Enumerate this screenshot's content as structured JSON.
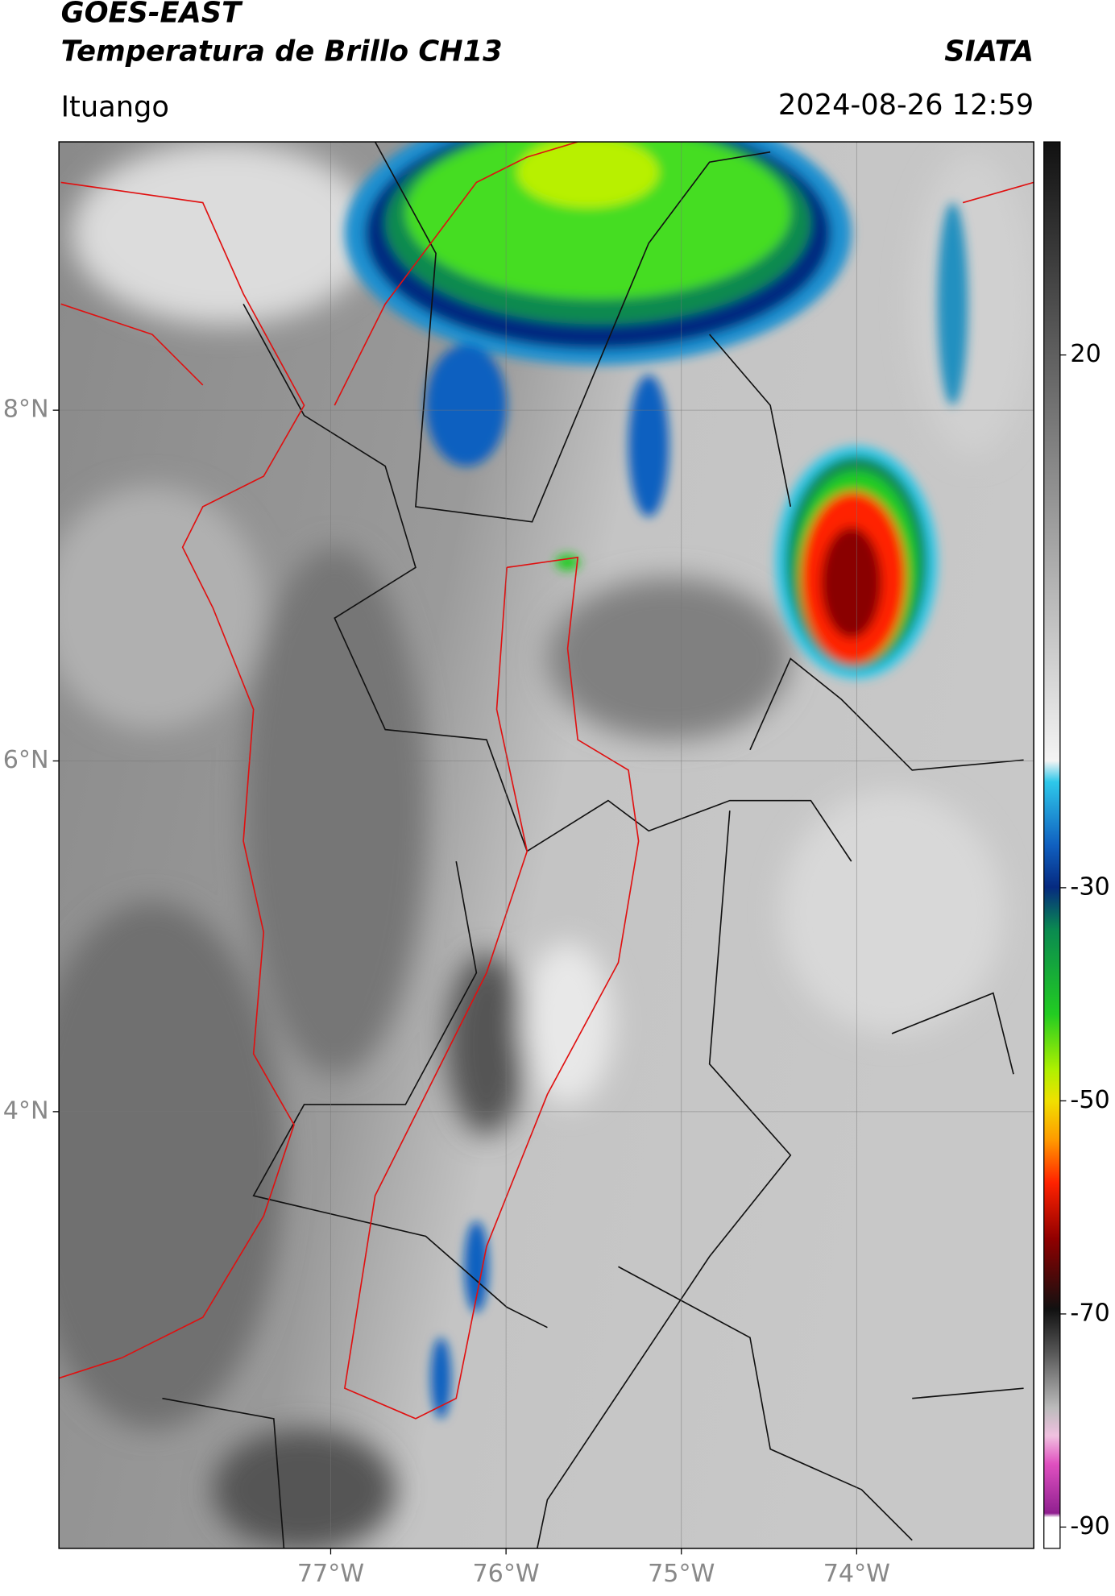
{
  "header": {
    "title": "GOES-EAST",
    "subtitle": "Temperatura de Brillo CH13",
    "source": "SIATA",
    "location": "Ituango",
    "datetime": "2024-08-26 12:59"
  },
  "map": {
    "xlim": [
      -78.55,
      -72.99
    ],
    "ylim": [
      1.51,
      9.53
    ],
    "xticks": [
      {
        "value": -77,
        "label": "77°W"
      },
      {
        "value": -76,
        "label": "76°W"
      },
      {
        "value": -75,
        "label": "75°W"
      },
      {
        "value": -74,
        "label": "74°W"
      }
    ],
    "yticks": [
      {
        "value": 8,
        "label": "8°N"
      },
      {
        "value": 6,
        "label": "6°N"
      },
      {
        "value": 4,
        "label": "4°N"
      }
    ],
    "grid": true
  },
  "colorbar": {
    "lim": [
      -92,
      40
    ],
    "ticks": [
      20,
      -30,
      -50,
      -70,
      -90
    ]
  }
}
